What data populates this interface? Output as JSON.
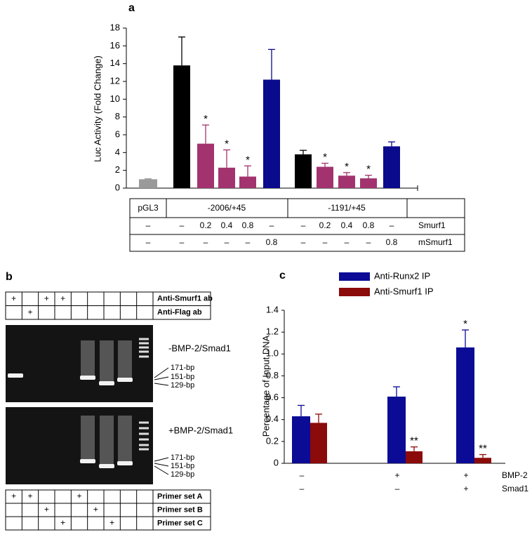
{
  "chart_data": [
    {
      "type": "bar",
      "panel_label": "a",
      "y_label": "Luc Activity (Fold Change)",
      "categories": [
        null,
        null,
        null,
        null,
        null,
        null,
        null,
        null,
        null,
        null,
        null
      ],
      "values": [
        1.0,
        13.8,
        5.0,
        2.3,
        1.3,
        12.2,
        3.8,
        2.4,
        1.4,
        1.1,
        4.7
      ],
      "errors": [
        0.05,
        3.2,
        2.1,
        2.0,
        1.2,
        3.4,
        0.45,
        0.4,
        0.35,
        0.35,
        0.5
      ],
      "colors": [
        "#9a9a9a",
        "#000000",
        "#a3336f",
        "#a3336f",
        "#a3336f",
        "#0a0a8c",
        "#000000",
        "#a3336f",
        "#a3336f",
        "#a3336f",
        "#0a0a8c"
      ],
      "annotations": [
        null,
        null,
        "*",
        "*",
        "*",
        null,
        null,
        "*",
        "*",
        "*",
        null
      ],
      "ylim": [
        0,
        18
      ],
      "yticks": [
        0,
        2,
        4,
        6,
        8,
        10,
        12,
        14,
        16,
        18
      ]
    },
    {
      "type": "grouped_bar",
      "panel_label": "c",
      "y_label": "Percentage of Input DNA",
      "categories": [
        null,
        null,
        null
      ],
      "series": [
        {
          "name": "Anti-Runx2 IP",
          "color": "#0b0b96",
          "values": [
            0.43,
            0.61,
            1.06
          ],
          "errors": [
            0.1,
            0.09,
            0.16
          ],
          "annotations": [
            null,
            null,
            "*"
          ]
        },
        {
          "name": "Anti-Smurf1 IP",
          "color": "#8b0a0a",
          "values": [
            0.37,
            0.11,
            0.05
          ],
          "errors": [
            0.08,
            0.04,
            0.03
          ],
          "annotations": [
            null,
            "**",
            "**"
          ]
        }
      ],
      "ylim": [
        0,
        1.4
      ],
      "yticks": [
        0,
        0.2,
        0.4,
        0.6,
        0.8,
        {
          "value": 1,
          "label": "1.0"
        },
        1.2,
        1.4
      ],
      "legend": "top",
      "conditions": {
        "rows": [
          {
            "label": "BMP-2",
            "cells": [
              "–",
              "+",
              "+"
            ]
          },
          {
            "label": "Smad1",
            "cells": [
              "–",
              "–",
              "+"
            ]
          }
        ]
      }
    }
  ],
  "panel_a_table": {
    "header": [
      "pGL3",
      "-2006/+45",
      "-1191/+45"
    ],
    "rows": [
      {
        "label": "Smurf1",
        "cells": [
          "–",
          "–",
          "0.2",
          "0.4",
          "0.8",
          "–",
          "–",
          "0.2",
          "0.4",
          "0.8",
          "–"
        ]
      },
      {
        "label": "mSmurf1",
        "cells": [
          "–",
          "–",
          "–",
          "–",
          "–",
          "0.8",
          "–",
          "–",
          "–",
          "–",
          "0.8"
        ]
      }
    ]
  },
  "panel_b": {
    "panel_label": "b",
    "antibody_table": {
      "rows": [
        {
          "label": "Anti-Smurf1 ab",
          "cells": [
            "+",
            null,
            "+",
            "+",
            null,
            null,
            null,
            null,
            null
          ]
        },
        {
          "label": "Anti-Flag ab",
          "cells": [
            null,
            "+",
            null,
            null,
            null,
            null,
            null,
            null,
            null
          ]
        }
      ]
    },
    "gels": [
      {
        "label": "-BMP-2/Smad1",
        "markers": [
          "171-bp",
          "151-bp",
          "129-bp"
        ]
      },
      {
        "label": "+BMP-2/Smad1",
        "markers": [
          "171-bp",
          "151-bp",
          "129-bp"
        ]
      }
    ],
    "primer_table": {
      "rows": [
        {
          "label": "Primer set A",
          "cells": [
            "+",
            "+",
            null,
            null,
            "+",
            null,
            null,
            null,
            null
          ]
        },
        {
          "label": "Primer set B",
          "cells": [
            null,
            null,
            "+",
            null,
            null,
            "+",
            null,
            null,
            null
          ]
        },
        {
          "label": "Primer set C",
          "cells": [
            null,
            null,
            null,
            "+",
            null,
            null,
            "+",
            null,
            null
          ]
        }
      ]
    }
  }
}
